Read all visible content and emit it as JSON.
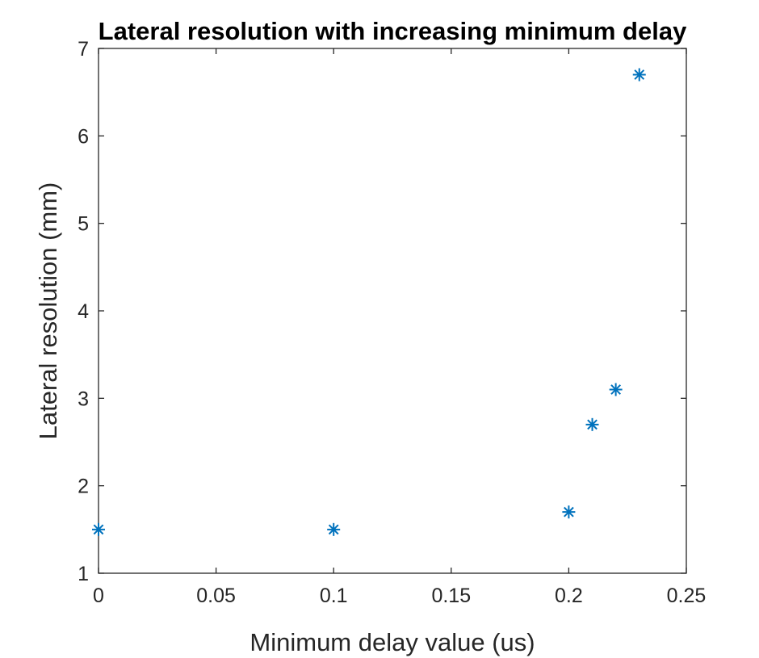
{
  "chart_data": {
    "type": "scatter",
    "title": "Lateral resolution with increasing minimum delay",
    "xlabel": "Minimum delay value (us)",
    "ylabel": "Lateral resolution (mm)",
    "xlim": [
      0,
      0.25
    ],
    "ylim": [
      1,
      7
    ],
    "xticks": [
      0,
      0.05,
      0.1,
      0.15,
      0.2,
      0.25
    ],
    "xtick_labels": [
      "0",
      "0.05",
      "0.1",
      "0.15",
      "0.2",
      "0.25"
    ],
    "yticks": [
      1,
      2,
      3,
      4,
      5,
      6,
      7
    ],
    "ytick_labels": [
      "1",
      "2",
      "3",
      "4",
      "5",
      "6",
      "7"
    ],
    "grid": false,
    "legend": false,
    "marker": "asterisk",
    "series": [
      {
        "color": "#0072BD",
        "x": [
          0,
          0.1,
          0.2,
          0.21,
          0.22,
          0.23
        ],
        "y": [
          1.5,
          1.5,
          1.7,
          2.7,
          3.1,
          6.7
        ]
      }
    ]
  }
}
